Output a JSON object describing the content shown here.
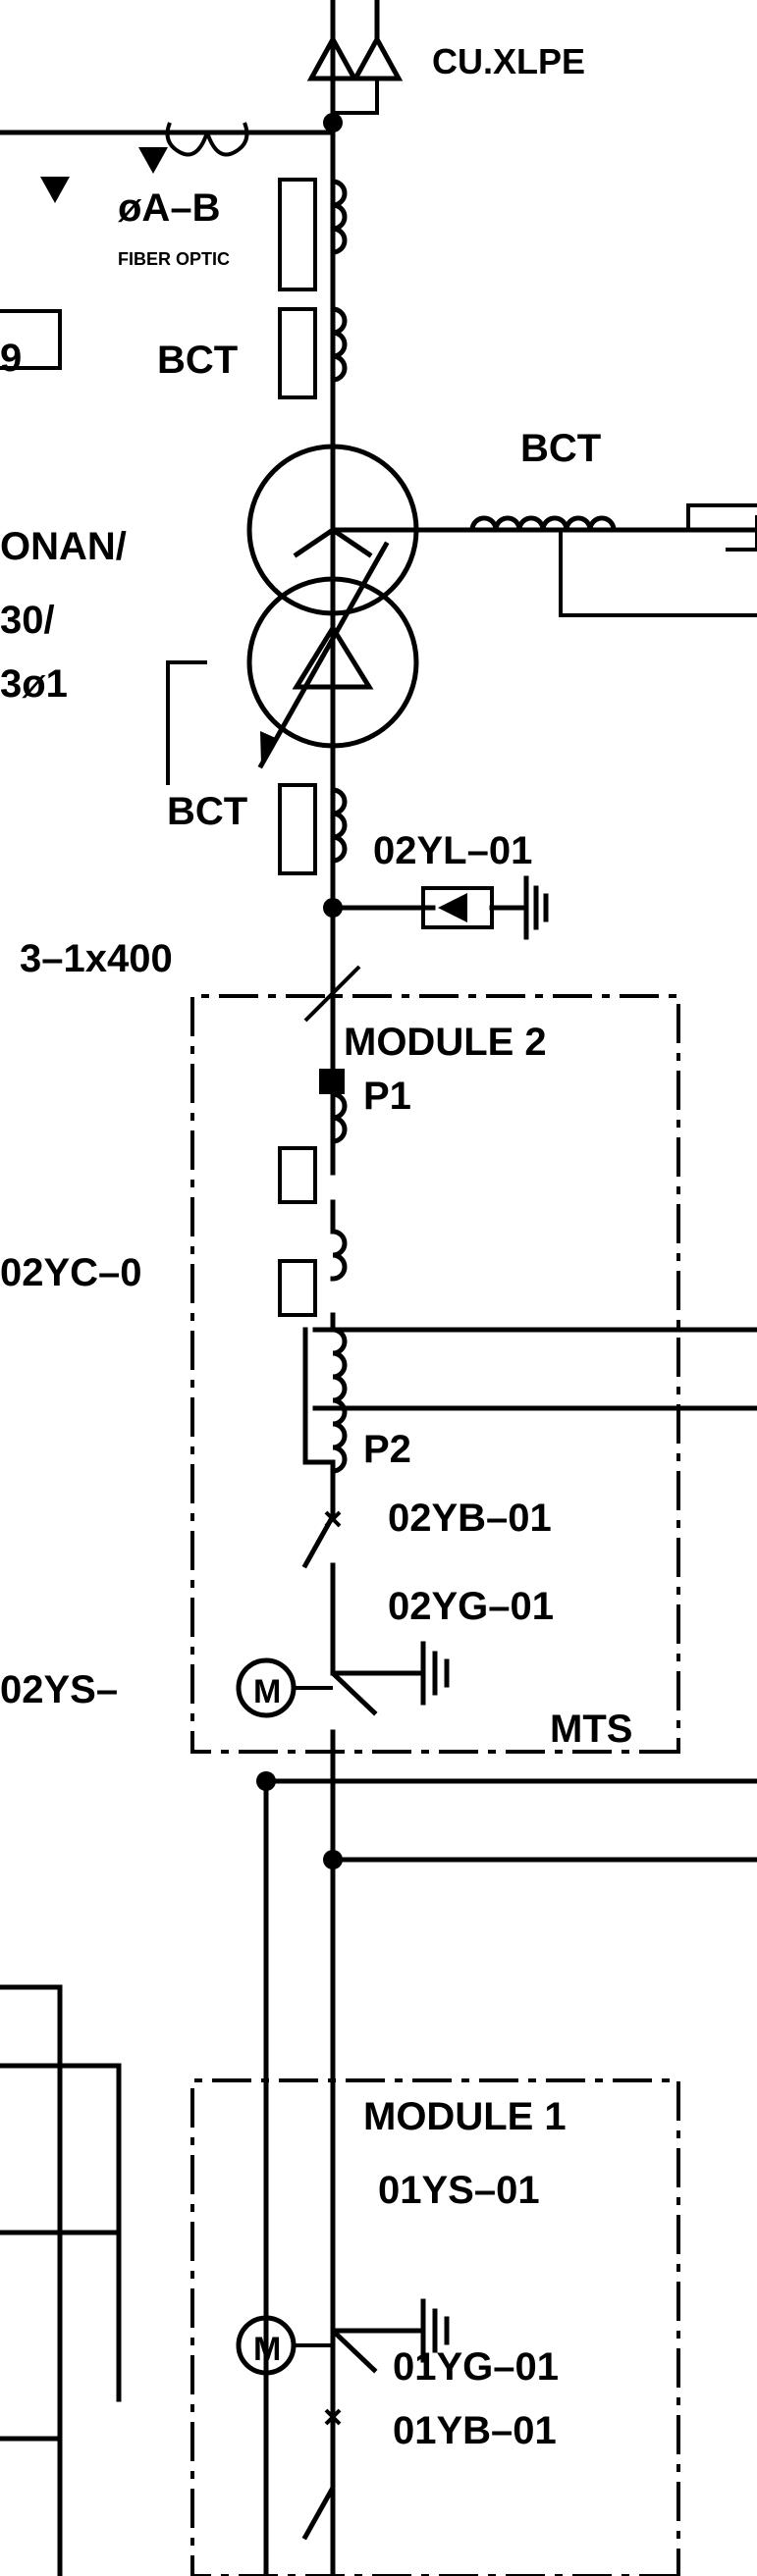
{
  "drawing": {
    "labels": {
      "cable_spec": "CU.XLPE",
      "phase_label": "øA–B",
      "fiber_optic": "FIBER OPTIC",
      "box_number": "9",
      "bct_upper_1": "BCT",
      "bct_right": "BCT",
      "onan": "ONAN/",
      "thirty": "30/",
      "phase_3": "3ø1",
      "bct_lower": "BCT",
      "surge_arrester": "02YL–01",
      "cable_size": "3–1x400",
      "module_2": "MODULE 2",
      "p1": "P1",
      "vt_label": "02YC–0",
      "p2": "P2",
      "breaker_label": "02YB–01",
      "ground_switch": "02YG–01",
      "mts_2": "MTS",
      "motor_switch_2": "02YS–",
      "module_1": "MODULE 1",
      "switch_label_1": "01YS–01",
      "ground_switch_1": "01YG–01",
      "breaker_label_1": "01YB–01",
      "motor_symbol": "M"
    }
  }
}
